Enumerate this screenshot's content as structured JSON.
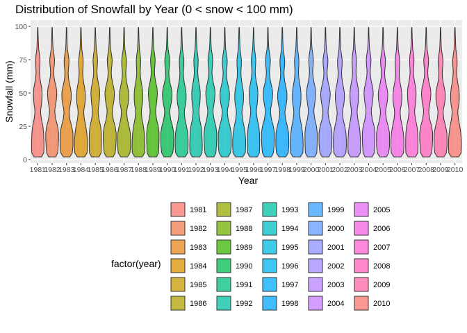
{
  "chart_data": {
    "type": "violin",
    "title": "Distribution of Snowfall by Year (0 < snow < 100 mm)",
    "xlabel": "Year",
    "ylabel": "Snowfall (mm)",
    "ylim": [
      0,
      100
    ],
    "y_ticks": [
      0,
      25,
      50,
      75,
      100
    ],
    "categories": [
      "1981",
      "1982",
      "1983",
      "1984",
      "1985",
      "1986",
      "1987",
      "1988",
      "1989",
      "1990",
      "1991",
      "1992",
      "1993",
      "1994",
      "1995",
      "1996",
      "1997",
      "1998",
      "1999",
      "2000",
      "2001",
      "2002",
      "2003",
      "2004",
      "2005",
      "2006",
      "2007",
      "2008",
      "2009",
      "2010"
    ],
    "density_y": [
      2,
      5,
      10,
      15,
      20,
      25,
      30,
      35,
      38,
      42,
      46,
      50,
      54,
      58,
      62,
      65,
      68,
      71,
      75,
      79,
      83,
      87,
      91,
      95,
      99
    ],
    "density_width": [
      0.55,
      0.9,
      0.98,
      1.0,
      0.95,
      0.8,
      0.55,
      0.42,
      0.45,
      0.6,
      0.68,
      0.7,
      0.6,
      0.42,
      0.3,
      0.26,
      0.28,
      0.34,
      0.36,
      0.26,
      0.14,
      0.1,
      0.07,
      0.05,
      0.03
    ],
    "grid": true,
    "legend": {
      "title": "factor(year)",
      "position": "bottom",
      "columns": 5,
      "rows_per_column": 6
    },
    "colors": [
      "#F8766D",
      "#F27D52",
      "#E7861B",
      "#D89000",
      "#C59900",
      "#AFA100",
      "#95A900",
      "#72B000",
      "#39B600",
      "#00BB4E",
      "#00BF7D",
      "#00C0A3",
      "#00C1A3",
      "#00BFC4",
      "#00BAE0",
      "#00B4EF",
      "#00ACFC",
      "#00A5FF",
      "#35A2FF",
      "#619CFF",
      "#8F91FF",
      "#A58AFF",
      "#B983FF",
      "#C77CFF",
      "#E76BF3",
      "#F564E3",
      "#FD61D1",
      "#FF62BC",
      "#FF67A4",
      "#F8766D"
    ]
  }
}
